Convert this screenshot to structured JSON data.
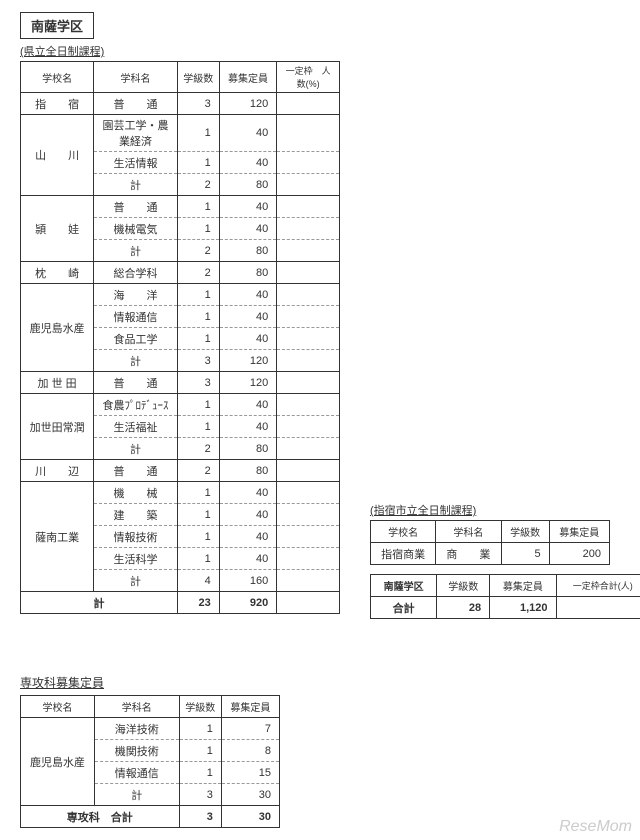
{
  "district_title": "南薩学区",
  "main_table": {
    "caption": "(県立全日制課程)",
    "headers": {
      "school": "学校名",
      "dept": "学科名",
      "classes": "学級数",
      "capacity": "募集定員",
      "extra": "一定枠　人数(%)"
    },
    "schools": [
      {
        "name": "指　　宿",
        "rowspan": 1,
        "rows": [
          {
            "dept": "普　　通",
            "classes": "3",
            "capacity": "120",
            "extra": "",
            "dashed": false
          }
        ]
      },
      {
        "name": "山　　川",
        "rowspan": 3,
        "rows": [
          {
            "dept": "園芸工学・農業経済",
            "classes": "1",
            "capacity": "40",
            "extra": "",
            "dashed": true
          },
          {
            "dept": "生活情報",
            "classes": "1",
            "capacity": "40",
            "extra": "",
            "dashed": true
          },
          {
            "dept": "計",
            "classes": "2",
            "capacity": "80",
            "extra": "",
            "dashed": false
          }
        ]
      },
      {
        "name": "頴　　娃",
        "rowspan": 3,
        "rows": [
          {
            "dept": "普　　通",
            "classes": "1",
            "capacity": "40",
            "extra": "",
            "dashed": true
          },
          {
            "dept": "機械電気",
            "classes": "1",
            "capacity": "40",
            "extra": "",
            "dashed": true
          },
          {
            "dept": "計",
            "classes": "2",
            "capacity": "80",
            "extra": "",
            "dashed": false
          }
        ]
      },
      {
        "name": "枕　　崎",
        "rowspan": 1,
        "rows": [
          {
            "dept": "総合学科",
            "classes": "2",
            "capacity": "80",
            "extra": "",
            "dashed": false
          }
        ]
      },
      {
        "name": "鹿児島水産",
        "rowspan": 4,
        "rows": [
          {
            "dept": "海　　洋",
            "classes": "1",
            "capacity": "40",
            "extra": "",
            "dashed": true
          },
          {
            "dept": "情報通信",
            "classes": "1",
            "capacity": "40",
            "extra": "",
            "dashed": true
          },
          {
            "dept": "食品工学",
            "classes": "1",
            "capacity": "40",
            "extra": "",
            "dashed": true
          },
          {
            "dept": "計",
            "classes": "3",
            "capacity": "120",
            "extra": "",
            "dashed": false
          }
        ]
      },
      {
        "name": "加 世 田",
        "rowspan": 1,
        "rows": [
          {
            "dept": "普　　通",
            "classes": "3",
            "capacity": "120",
            "extra": "",
            "dashed": false
          }
        ]
      },
      {
        "name": "加世田常潤",
        "rowspan": 3,
        "rows": [
          {
            "dept": "食農ﾌﾟﾛﾃﾞｭｰｽ",
            "classes": "1",
            "capacity": "40",
            "extra": "",
            "dashed": true
          },
          {
            "dept": "生活福祉",
            "classes": "1",
            "capacity": "40",
            "extra": "",
            "dashed": true
          },
          {
            "dept": "計",
            "classes": "2",
            "capacity": "80",
            "extra": "",
            "dashed": false
          }
        ]
      },
      {
        "name": "川　　辺",
        "rowspan": 1,
        "rows": [
          {
            "dept": "普　　通",
            "classes": "2",
            "capacity": "80",
            "extra": "",
            "dashed": false
          }
        ]
      },
      {
        "name": "薩南工業",
        "rowspan": 5,
        "rows": [
          {
            "dept": "機　　械",
            "classes": "1",
            "capacity": "40",
            "extra": "",
            "dashed": true
          },
          {
            "dept": "建　　築",
            "classes": "1",
            "capacity": "40",
            "extra": "",
            "dashed": true
          },
          {
            "dept": "情報技術",
            "classes": "1",
            "capacity": "40",
            "extra": "",
            "dashed": true
          },
          {
            "dept": "生活科学",
            "classes": "1",
            "capacity": "40",
            "extra": "",
            "dashed": true
          },
          {
            "dept": "計",
            "classes": "4",
            "capacity": "160",
            "extra": "",
            "dashed": false
          }
        ]
      }
    ],
    "total": {
      "label": "計",
      "classes": "23",
      "capacity": "920",
      "extra": ""
    }
  },
  "side_table": {
    "caption": "(指宿市立全日制課程)",
    "headers": {
      "school": "学校名",
      "dept": "学科名",
      "classes": "学級数",
      "capacity": "募集定員"
    },
    "rows": [
      {
        "school": "指宿商業",
        "dept": "商　　業",
        "classes": "5",
        "capacity": "200"
      }
    ]
  },
  "summary_table": {
    "headers": {
      "district": "南薩学区",
      "classes": "学級数",
      "capacity": "募集定員",
      "extra": "一定枠合計(人)"
    },
    "row": {
      "label": "合計",
      "classes": "28",
      "capacity": "1,120",
      "extra": ""
    }
  },
  "senkou_table": {
    "title": "専攻科募集定員",
    "headers": {
      "school": "学校名",
      "dept": "学科名",
      "classes": "学級数",
      "capacity": "募集定員"
    },
    "school": "鹿児島水産",
    "rows": [
      {
        "dept": "海洋技術",
        "classes": "1",
        "capacity": "7",
        "dashed": true
      },
      {
        "dept": "機関技術",
        "classes": "1",
        "capacity": "8",
        "dashed": true
      },
      {
        "dept": "情報通信",
        "classes": "1",
        "capacity": "15",
        "dashed": true
      },
      {
        "dept": "計",
        "classes": "3",
        "capacity": "30",
        "dashed": false
      }
    ],
    "total": {
      "label": "専攻科　合計",
      "classes": "3",
      "capacity": "30"
    }
  },
  "watermark": "ReseMom"
}
